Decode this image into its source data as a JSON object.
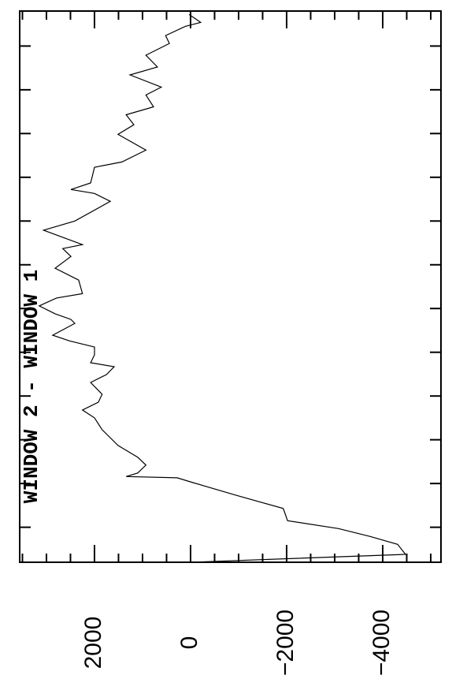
{
  "chart_data": {
    "type": "line",
    "ylabel": "WINDOW 2 - WINDOW 1",
    "x": [
      -8,
      -6.2,
      -3.9,
      -2.1,
      -0.3,
      1.5,
      4.3,
      7.3,
      10.2,
      11.3,
      11.6,
      12.4,
      14.2,
      16,
      18.7,
      22.3,
      25,
      26.8,
      28.6,
      30.4,
      33.1,
      34.9,
      36.7,
      37.6,
      39.4,
      41.2,
      42.6,
      43.9,
      46.6,
      47.5,
      48.8,
      50.6,
      52.4,
      53.4,
      56.5,
      59.2,
      61.9,
      63.7,
      64.6,
      67.9,
      70,
      74.5,
      76.3,
      77.2,
      78.7,
      82.3,
      83.5,
      86.2,
      89.8,
      92,
      94.3,
      96.1,
      98.8,
      100.6,
      103.4,
      105.2,
      107.9,
      110.6,
      112.4,
      114.5,
      115.4,
      117.2
    ],
    "series": [
      {
        "color": "#000000",
        "values": [
          0,
          -4475,
          -4310,
          -3740,
          -3080,
          -2020,
          -1930,
          -950,
          -50,
          280,
          1340,
          1100,
          930,
          1100,
          1510,
          1840,
          2000,
          2250,
          1920,
          1840,
          2080,
          1750,
          1590,
          2080,
          2000,
          2000,
          2520,
          2870,
          2410,
          2490,
          2820,
          3150,
          2790,
          2250,
          2330,
          2820,
          2490,
          2660,
          2250,
          3060,
          2410,
          1670,
          2000,
          2490,
          2080,
          2000,
          1430,
          930,
          1510,
          1180,
          1340,
          770,
          930,
          610,
          1260,
          690,
          930,
          440,
          520,
          110,
          -210,
          30
        ]
      }
    ],
    "xlim": [
      -8,
      118
    ],
    "xticks": [
      0,
      10,
      20,
      30,
      40,
      50,
      60,
      70,
      80,
      90,
      100,
      110
    ],
    "ylim": [
      3557,
      -5213
    ],
    "yticks": [
      {
        "value": -4000,
        "label": "−4000"
      },
      {
        "value": -2000,
        "label": "−2000"
      },
      0,
      2000
    ],
    "yticks_minor": [
      -5000,
      -4500,
      -3500,
      -3000,
      -2500,
      -1500,
      -1000,
      -500,
      500,
      1000,
      1500,
      2500,
      3000,
      3500
    ]
  }
}
